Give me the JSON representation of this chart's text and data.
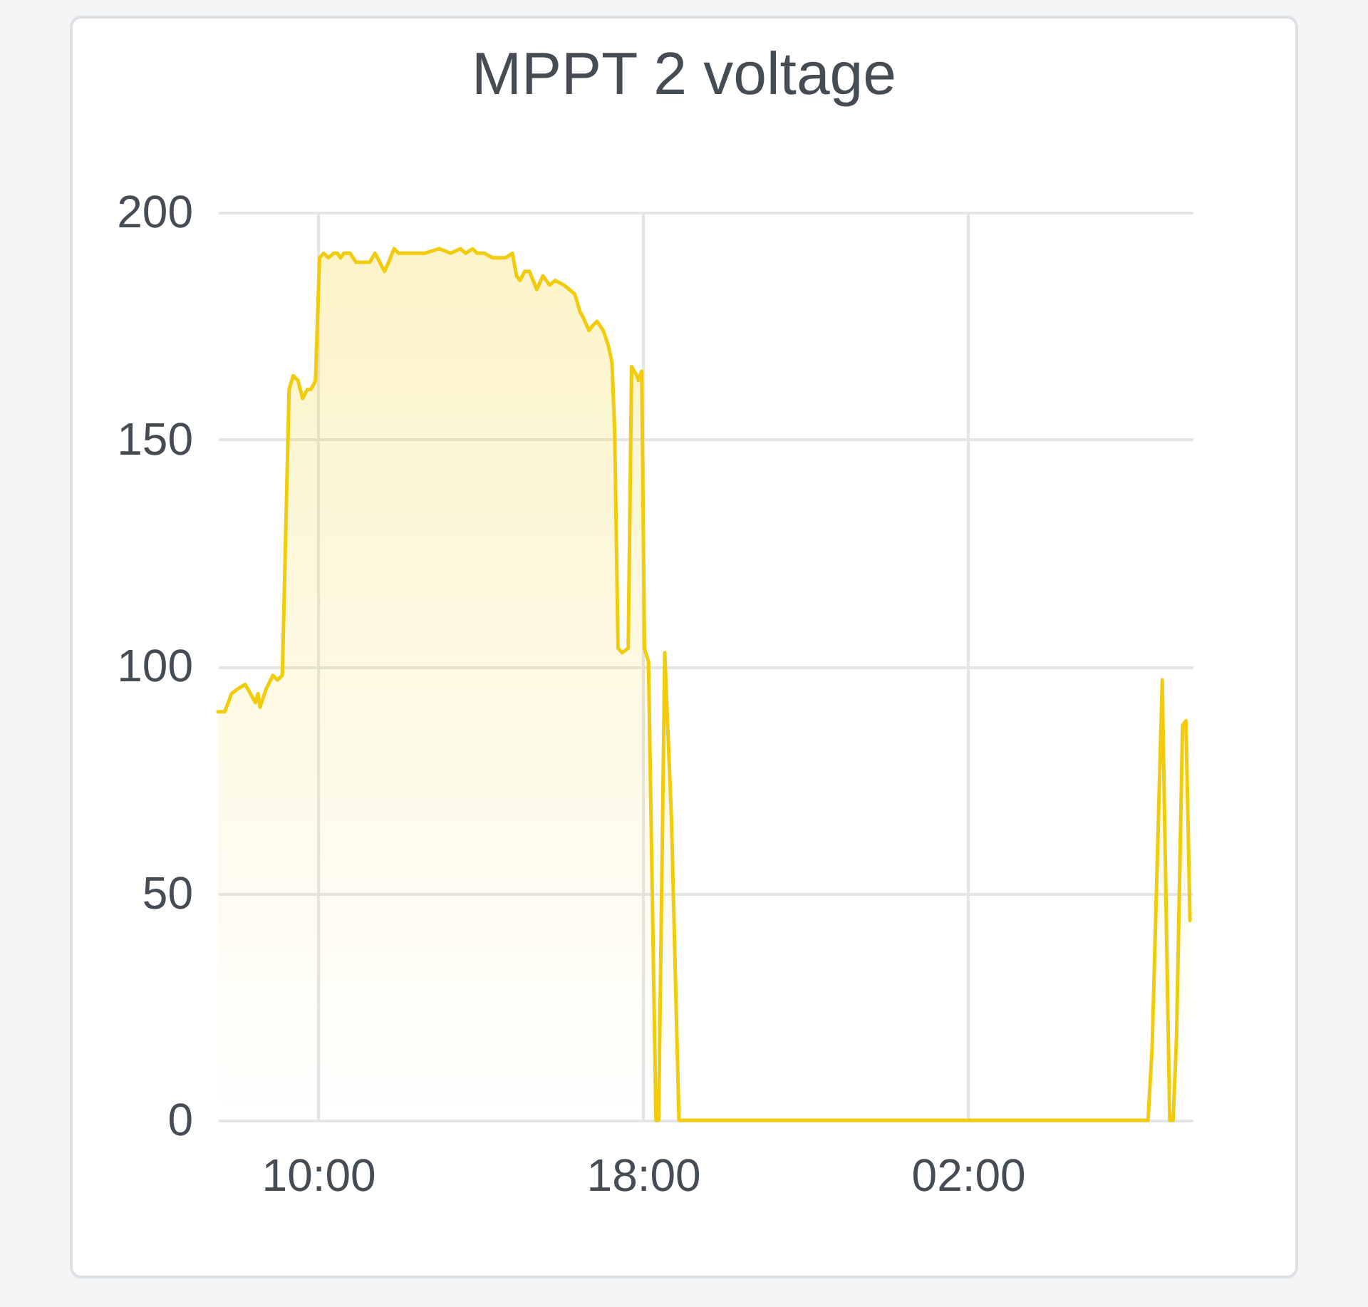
{
  "chart_data": {
    "type": "area",
    "title": "MPPT 2 voltage",
    "color": "#f2cc0c",
    "grid": true,
    "xlim": [
      "--01-01T07:32",
      "--01-02T07:32"
    ],
    "xticks": [
      {
        "value": "--01-01T10:00",
        "label": "10:00"
      },
      {
        "value": "--01-01T18:00",
        "label": "18:00"
      },
      {
        "value": "--01-02T02:00",
        "label": "02:00"
      }
    ],
    "ylim": [
      0,
      200
    ],
    "yticks": [
      0,
      50,
      100,
      150,
      200
    ],
    "x": [
      "--01-01T07:32",
      "--01-01T07:42",
      "--01-01T07:52",
      "--01-01T08:01",
      "--01-01T08:12",
      "--01-01T08:20",
      "--01-01T08:27",
      "--01-01T08:31",
      "--01-01T08:34",
      "--01-01T08:43",
      "--01-01T08:53",
      "--01-01T09:00",
      "--01-01T09:07",
      "--01-01T09:17",
      "--01-01T09:23",
      "--01-01T09:30",
      "--01-01T09:37",
      "--01-01T09:44",
      "--01-01T09:49",
      "--01-01T09:53",
      "--01-01T09:56",
      "--01-01T10:02",
      "--01-01T10:08",
      "--01-01T10:15",
      "--01-01T10:23",
      "--01-01T10:28",
      "--01-01T10:33",
      "--01-01T10:38",
      "--01-01T10:47",
      "--01-01T10:56",
      "--01-01T11:03",
      "--01-01T11:10",
      "--01-01T11:16",
      "--01-01T11:24",
      "--01-01T11:31",
      "--01-01T11:38",
      "--01-01T11:44",
      "--01-01T11:52",
      "--01-01T11:59",
      "--01-01T12:10",
      "--01-01T12:20",
      "--01-01T12:37",
      "--01-01T12:59",
      "--01-01T13:16",
      "--01-01T13:30",
      "--01-01T13:38",
      "--01-01T13:48",
      "--01-01T13:55",
      "--01-01T14:05",
      "--01-01T14:18",
      "--01-01T14:26",
      "--01-01T14:37",
      "--01-01T14:47",
      "--01-01T14:53",
      "--01-01T14:58",
      "--01-01T15:05",
      "--01-01T15:12",
      "--01-01T15:23",
      "--01-01T15:32",
      "--01-01T15:42",
      "--01-01T15:50",
      "--01-01T16:03",
      "--01-01T16:11",
      "--01-01T16:19",
      "--01-01T16:27",
      "--01-01T16:31",
      "--01-01T16:40",
      "--01-01T16:45",
      "--01-01T16:52",
      "--01-01T17:01",
      "--01-01T17:08",
      "--01-01T17:14",
      "--01-01T17:18",
      "--01-01T17:23",
      "--01-01T17:29",
      "--01-01T17:38",
      "--01-01T17:43",
      "--01-01T17:51",
      "--01-01T17:53",
      "--01-01T17:58",
      "--01-01T18:02",
      "--01-01T18:08",
      "--01-01T18:19",
      "--01-01T18:23",
      "--01-01T18:32",
      "--01-01T18:42",
      "--01-01T18:53",
      "--01-02T06:26",
      "--01-02T06:32",
      "--01-02T06:47",
      "--01-02T06:58",
      "--01-02T07:03",
      "--01-02T07:08",
      "--01-02T07:17",
      "--01-02T07:22",
      "--01-02T07:28"
    ],
    "values": [
      90,
      90,
      94,
      95,
      96,
      94,
      92,
      94,
      91,
      95,
      98,
      97,
      98,
      161,
      164,
      163,
      159,
      161,
      161,
      162,
      163,
      190,
      191,
      190,
      191,
      191,
      190,
      191,
      191,
      189,
      189,
      189,
      189,
      191,
      189,
      187,
      189,
      192,
      191,
      191,
      191,
      191,
      192,
      191,
      192,
      191,
      192,
      191,
      191,
      190,
      190,
      190,
      191,
      186,
      185,
      187,
      187,
      183,
      186,
      184,
      185,
      184,
      183,
      182,
      178,
      177,
      174,
      175,
      176,
      174,
      171,
      167,
      152,
      104,
      103,
      104,
      166,
      164,
      163,
      165,
      104,
      101,
      0,
      0,
      103,
      66,
      0,
      0,
      16,
      97,
      0,
      0,
      18,
      87,
      88,
      44
    ]
  }
}
